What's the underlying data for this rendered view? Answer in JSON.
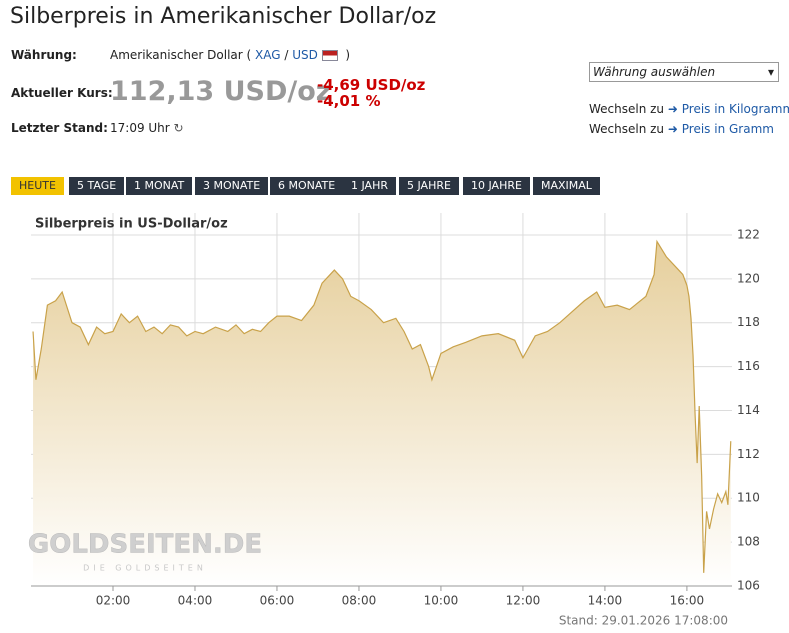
{
  "header": {
    "title": "Silberpreis in Amerikanischer Dollar/oz",
    "currency_label": "Währung:",
    "currency_name": "Amerikanischer Dollar (",
    "currency_xag": "XAG",
    "currency_sep": "/",
    "currency_usd": "USD",
    "currency_close": ")",
    "rate_label": "Aktueller Kurs:",
    "rate": "112,13 USD/oz",
    "change_abs": "-4,69 USD/oz",
    "change_pct": "-4,01 %",
    "time_label": "Letzter Stand:",
    "time": "17:09 Uhr",
    "select": "Währung auswählen",
    "switch": [
      {
        "prefix": "Wechseln zu",
        "link": "Preis in Kilogramm"
      },
      {
        "prefix": "Wechseln zu",
        "link": "Preis in Gramm"
      }
    ]
  },
  "tabs": [
    "HEUTE",
    "5 TAGE",
    "1 MONAT",
    "3 MONATE",
    "6 MONATE",
    "1 JAHR",
    "5 JAHRE",
    "10 JAHRE",
    "MAXIMAL"
  ],
  "chart_data": {
    "type": "area",
    "title": "Silberpreis in US-Dollar/oz",
    "color": "#c9a24a",
    "x": [
      0.05,
      0.12,
      0.25,
      0.4,
      0.6,
      0.76,
      1.0,
      1.2,
      1.4,
      1.6,
      1.8,
      2.0,
      2.2,
      2.4,
      2.6,
      2.8,
      3.0,
      3.2,
      3.4,
      3.6,
      3.8,
      4.0,
      4.2,
      4.5,
      4.8,
      5.0,
      5.2,
      5.4,
      5.6,
      5.8,
      6.0,
      6.3,
      6.6,
      6.9,
      7.1,
      7.4,
      7.6,
      7.8,
      8.0,
      8.3,
      8.6,
      8.9,
      9.1,
      9.3,
      9.5,
      9.7,
      9.78,
      10.0,
      10.3,
      10.6,
      11.0,
      11.4,
      11.8,
      12.0,
      12.3,
      12.6,
      12.9,
      13.2,
      13.5,
      13.8,
      14.0,
      14.3,
      14.6,
      15.0,
      15.2,
      15.27,
      15.5,
      15.7,
      15.9,
      16.0,
      16.05,
      16.1,
      16.15,
      16.2,
      16.25,
      16.3,
      16.36,
      16.41,
      16.48,
      16.55,
      16.65,
      16.75,
      16.85,
      16.95,
      17.0,
      17.07
    ],
    "values": [
      117.6,
      115.4,
      116.8,
      118.8,
      119.0,
      119.4,
      118.0,
      117.8,
      117.0,
      117.8,
      117.5,
      117.6,
      118.4,
      118.0,
      118.3,
      117.6,
      117.8,
      117.5,
      117.9,
      117.8,
      117.4,
      117.6,
      117.5,
      117.8,
      117.6,
      117.9,
      117.5,
      117.7,
      117.6,
      118.0,
      118.3,
      118.3,
      118.1,
      118.8,
      119.8,
      120.4,
      120.0,
      119.2,
      119.0,
      118.6,
      118.0,
      118.2,
      117.6,
      116.8,
      117.0,
      116.0,
      115.4,
      116.6,
      116.9,
      117.1,
      117.4,
      117.5,
      117.2,
      116.4,
      117.4,
      117.6,
      118.0,
      118.5,
      119.0,
      119.4,
      118.7,
      118.8,
      118.6,
      119.2,
      120.2,
      121.7,
      121.0,
      120.6,
      120.2,
      119.7,
      119.2,
      118.2,
      116.5,
      113.8,
      111.6,
      114.2,
      111.0,
      106.6,
      109.4,
      108.6,
      109.5,
      110.2,
      109.8,
      110.3,
      109.7,
      112.6
    ],
    "xlim": [
      0,
      17.1
    ],
    "xticks": [
      {
        "value": 2,
        "label": "02:00"
      },
      {
        "value": 4,
        "label": "04:00"
      },
      {
        "value": 6,
        "label": "06:00"
      },
      {
        "value": 8,
        "label": "08:00"
      },
      {
        "value": 10,
        "label": "10:00"
      },
      {
        "value": 12,
        "label": "12:00"
      },
      {
        "value": 14,
        "label": "14:00"
      },
      {
        "value": 16,
        "label": "16:00"
      }
    ],
    "ylim": [
      106,
      123
    ],
    "yticks": [
      106,
      108,
      110,
      112,
      114,
      116,
      118,
      120,
      122
    ],
    "grid": true,
    "watermark": [
      "GOLDSEITEN.DE",
      "DIE GOLDSEITEN"
    ]
  },
  "footer": "Stand: 29.01.2026 17:08:00"
}
